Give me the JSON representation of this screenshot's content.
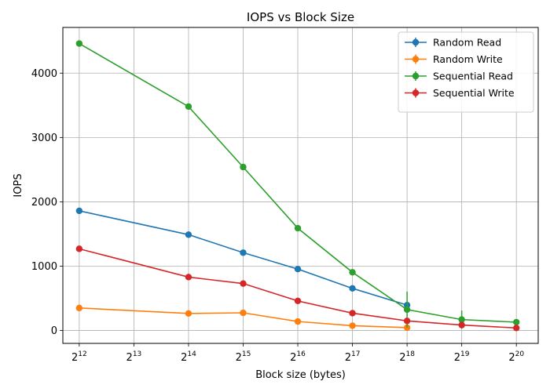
{
  "chart_data": {
    "type": "line",
    "title": "IOPS vs Block Size",
    "xlabel": "Block size (bytes)",
    "ylabel": "IOPS",
    "x_scale": "log2",
    "xlim_exp": [
      11.7,
      20.4
    ],
    "ylim": [
      -200,
      4710
    ],
    "x_ticks": [
      {
        "base": "2",
        "exp": "12",
        "value": 4096
      },
      {
        "base": "2",
        "exp": "13",
        "value": 8192
      },
      {
        "base": "2",
        "exp": "14",
        "value": 16384
      },
      {
        "base": "2",
        "exp": "15",
        "value": 32768
      },
      {
        "base": "2",
        "exp": "16",
        "value": 65536
      },
      {
        "base": "2",
        "exp": "17",
        "value": 131072
      },
      {
        "base": "2",
        "exp": "18",
        "value": 262144
      },
      {
        "base": "2",
        "exp": "19",
        "value": 524288
      },
      {
        "base": "2",
        "exp": "20",
        "value": 1048576
      }
    ],
    "y_ticks": [
      0,
      1000,
      2000,
      3000,
      4000
    ],
    "y_tick_labels": [
      "0",
      "1000",
      "2000",
      "3000",
      "4000"
    ],
    "grid": true,
    "legend_position": "top-right",
    "series": [
      {
        "name": "Random Read",
        "color": "#1f77b4",
        "points": [
          {
            "x": 4096,
            "y": 1860,
            "err": 15
          },
          {
            "x": 16384,
            "y": 1490,
            "err": 15
          },
          {
            "x": 32768,
            "y": 1210,
            "err": 15
          },
          {
            "x": 65536,
            "y": 955,
            "err": 15
          },
          {
            "x": 131072,
            "y": 655,
            "err": 15
          },
          {
            "x": 262144,
            "y": 395,
            "err": 15
          }
        ]
      },
      {
        "name": "Random Write",
        "color": "#ff7f0e",
        "points": [
          {
            "x": 4096,
            "y": 350,
            "err": 10
          },
          {
            "x": 16384,
            "y": 265,
            "err": 10
          },
          {
            "x": 32768,
            "y": 275,
            "err": 10
          },
          {
            "x": 65536,
            "y": 140,
            "err": 10
          },
          {
            "x": 131072,
            "y": 75,
            "err": 10
          },
          {
            "x": 262144,
            "y": 45,
            "err": 10
          }
        ]
      },
      {
        "name": "Sequential Read",
        "color": "#2ca02c",
        "points": [
          {
            "x": 4096,
            "y": 4460,
            "err": 15
          },
          {
            "x": 16384,
            "y": 3480,
            "err": 15
          },
          {
            "x": 32768,
            "y": 2540,
            "err": 15
          },
          {
            "x": 65536,
            "y": 1590,
            "err": 15
          },
          {
            "x": 131072,
            "y": 905,
            "err": 15
          },
          {
            "x": 262144,
            "y": 325,
            "err": 280
          },
          {
            "x": 524288,
            "y": 170,
            "err": 140
          },
          {
            "x": 1048576,
            "y": 130,
            "err": 10
          }
        ]
      },
      {
        "name": "Sequential Write",
        "color": "#d62728",
        "points": [
          {
            "x": 4096,
            "y": 1270,
            "err": 15
          },
          {
            "x": 16384,
            "y": 830,
            "err": 15
          },
          {
            "x": 32768,
            "y": 730,
            "err": 15
          },
          {
            "x": 65536,
            "y": 460,
            "err": 15
          },
          {
            "x": 131072,
            "y": 270,
            "err": 15
          },
          {
            "x": 262144,
            "y": 150,
            "err": 10
          },
          {
            "x": 524288,
            "y": 85,
            "err": 10
          },
          {
            "x": 1048576,
            "y": 40,
            "err": 10
          }
        ]
      }
    ]
  }
}
